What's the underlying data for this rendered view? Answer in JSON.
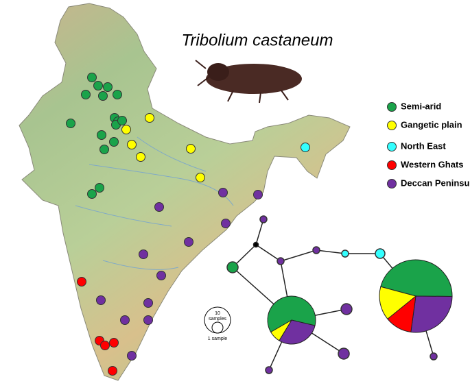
{
  "title": "Tribolium castaneum",
  "legend": [
    {
      "label": "Semi-arid",
      "color": "#1aa34a"
    },
    {
      "label": "Gangetic plain",
      "color": "#ffff00"
    },
    {
      "label": "North East",
      "color": "#33ffff"
    },
    {
      "label": "Western Ghats",
      "color": "#ff0000"
    },
    {
      "label": "Deccan Peninsula",
      "color": "#7030a0"
    }
  ],
  "scale": {
    "large_number": "10",
    "large_text": "samples",
    "small_text": "1 sample"
  },
  "haplotype_network": {
    "pies": [
      {
        "segments": [
          {
            "color": "#1aa34a",
            "value": 46
          },
          {
            "color": "#7030a0",
            "value": 27
          },
          {
            "color": "#ff0000",
            "value": 12
          },
          {
            "color": "#ffff00",
            "value": 15
          }
        ]
      },
      {
        "segments": [
          {
            "color": "#1aa34a",
            "value": 62
          },
          {
            "color": "#7030a0",
            "value": 30
          },
          {
            "color": "#ffff00",
            "value": 8
          }
        ]
      }
    ]
  }
}
